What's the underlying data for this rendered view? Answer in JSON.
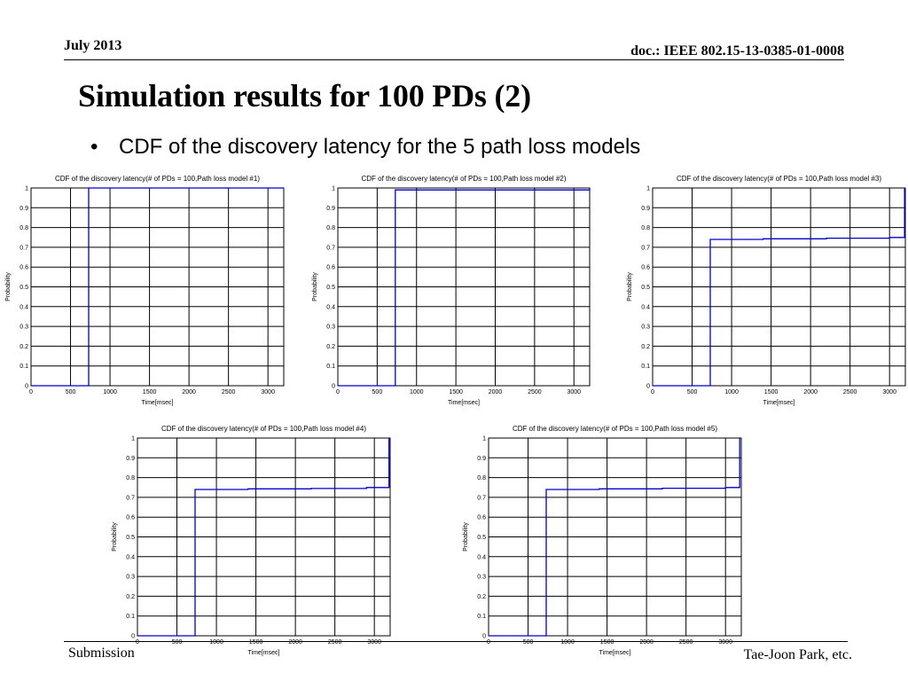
{
  "header": {
    "date": "July 2013",
    "doc": "doc.: IEEE 802.15-13-0385-01-0008"
  },
  "title": "Simulation results for 100 PDs (2)",
  "bullet": {
    "marker": "•",
    "text": "CDF of the discovery latency for the 5 path loss models"
  },
  "footer": {
    "left": "Submission",
    "right": "Tae-Joon Park, etc."
  },
  "colors": {
    "line": "#0000cc",
    "grid": "#000000"
  },
  "chart_data": [
    {
      "type": "line",
      "title": "CDF of the discovery latency(# of PDs = 100,Path loss model #1)",
      "xlabel": "Time[msec]",
      "ylabel": "Probability",
      "xlim": [
        0,
        3200
      ],
      "ylim": [
        0,
        1
      ],
      "xticks": [
        0,
        500,
        1000,
        1500,
        2000,
        2500,
        3000
      ],
      "yticks": [
        0,
        0.1,
        0.2,
        0.3,
        0.4,
        0.5,
        0.6,
        0.7,
        0.8,
        0.9,
        1
      ],
      "grid": true,
      "series": [
        {
          "x": [
            0,
            730,
            730,
            3200
          ],
          "y": [
            0,
            0,
            1,
            1
          ]
        }
      ]
    },
    {
      "type": "line",
      "title": "CDF of the discovery latency(# of PDs = 100,Path loss model #2)",
      "xlabel": "Time[msec]",
      "ylabel": "Probability",
      "xlim": [
        0,
        3200
      ],
      "ylim": [
        0,
        1
      ],
      "xticks": [
        0,
        500,
        1000,
        1500,
        2000,
        2500,
        3000
      ],
      "yticks": [
        0,
        0.1,
        0.2,
        0.3,
        0.4,
        0.5,
        0.6,
        0.7,
        0.8,
        0.9,
        1
      ],
      "grid": true,
      "series": [
        {
          "x": [
            0,
            730,
            730,
            3200
          ],
          "y": [
            0,
            0,
            0.99,
            0.99
          ]
        }
      ]
    },
    {
      "type": "line",
      "title": "CDF of the discovery latency(# of PDs = 100,Path loss model #3)",
      "xlabel": "Time[msec]",
      "ylabel": "Probability",
      "xlim": [
        0,
        3200
      ],
      "ylim": [
        0,
        1
      ],
      "xticks": [
        0,
        500,
        1000,
        1500,
        2000,
        2500,
        3000
      ],
      "yticks": [
        0,
        0.1,
        0.2,
        0.3,
        0.4,
        0.5,
        0.6,
        0.7,
        0.8,
        0.9,
        1
      ],
      "grid": true,
      "series": [
        {
          "x": [
            0,
            730,
            730,
            1400,
            1400,
            2200,
            2200,
            3000,
            3000,
            3190,
            3190
          ],
          "y": [
            0,
            0,
            0.74,
            0.74,
            0.743,
            0.743,
            0.746,
            0.746,
            0.75,
            0.75,
            0.9
          ]
        }
      ]
    },
    {
      "type": "line",
      "title": "CDF of the discovery latency(# of PDs = 100,Path loss model #4)",
      "xlabel": "Time[msec]",
      "ylabel": "Probability",
      "xlim": [
        0,
        3200
      ],
      "ylim": [
        0,
        1
      ],
      "xticks": [
        0,
        500,
        1000,
        1500,
        2000,
        2500,
        3000
      ],
      "yticks": [
        0,
        0.1,
        0.2,
        0.3,
        0.4,
        0.5,
        0.6,
        0.7,
        0.8,
        0.9,
        1
      ],
      "grid": true,
      "series": [
        {
          "x": [
            0,
            730,
            730,
            1400,
            1400,
            2200,
            2200,
            2900,
            2900,
            3185,
            3185
          ],
          "y": [
            0,
            0,
            0.74,
            0.74,
            0.743,
            0.743,
            0.745,
            0.745,
            0.75,
            0.75,
            0.9
          ]
        }
      ]
    },
    {
      "type": "line",
      "title": "CDF of the discovery latency(# of PDs = 100,Path loss model #5)",
      "xlabel": "Time[msec]",
      "ylabel": "Probability",
      "xlim": [
        0,
        3200
      ],
      "ylim": [
        0,
        1
      ],
      "xticks": [
        0,
        500,
        1000,
        1500,
        2000,
        2500,
        3000
      ],
      "yticks": [
        0,
        0.1,
        0.2,
        0.3,
        0.4,
        0.5,
        0.6,
        0.7,
        0.8,
        0.9,
        1
      ],
      "grid": true,
      "series": [
        {
          "x": [
            0,
            730,
            730,
            1400,
            1400,
            2200,
            2200,
            3000,
            3000,
            3180,
            3180
          ],
          "y": [
            0,
            0,
            0.74,
            0.74,
            0.743,
            0.743,
            0.746,
            0.746,
            0.75,
            0.75,
            0.9
          ]
        }
      ]
    }
  ]
}
